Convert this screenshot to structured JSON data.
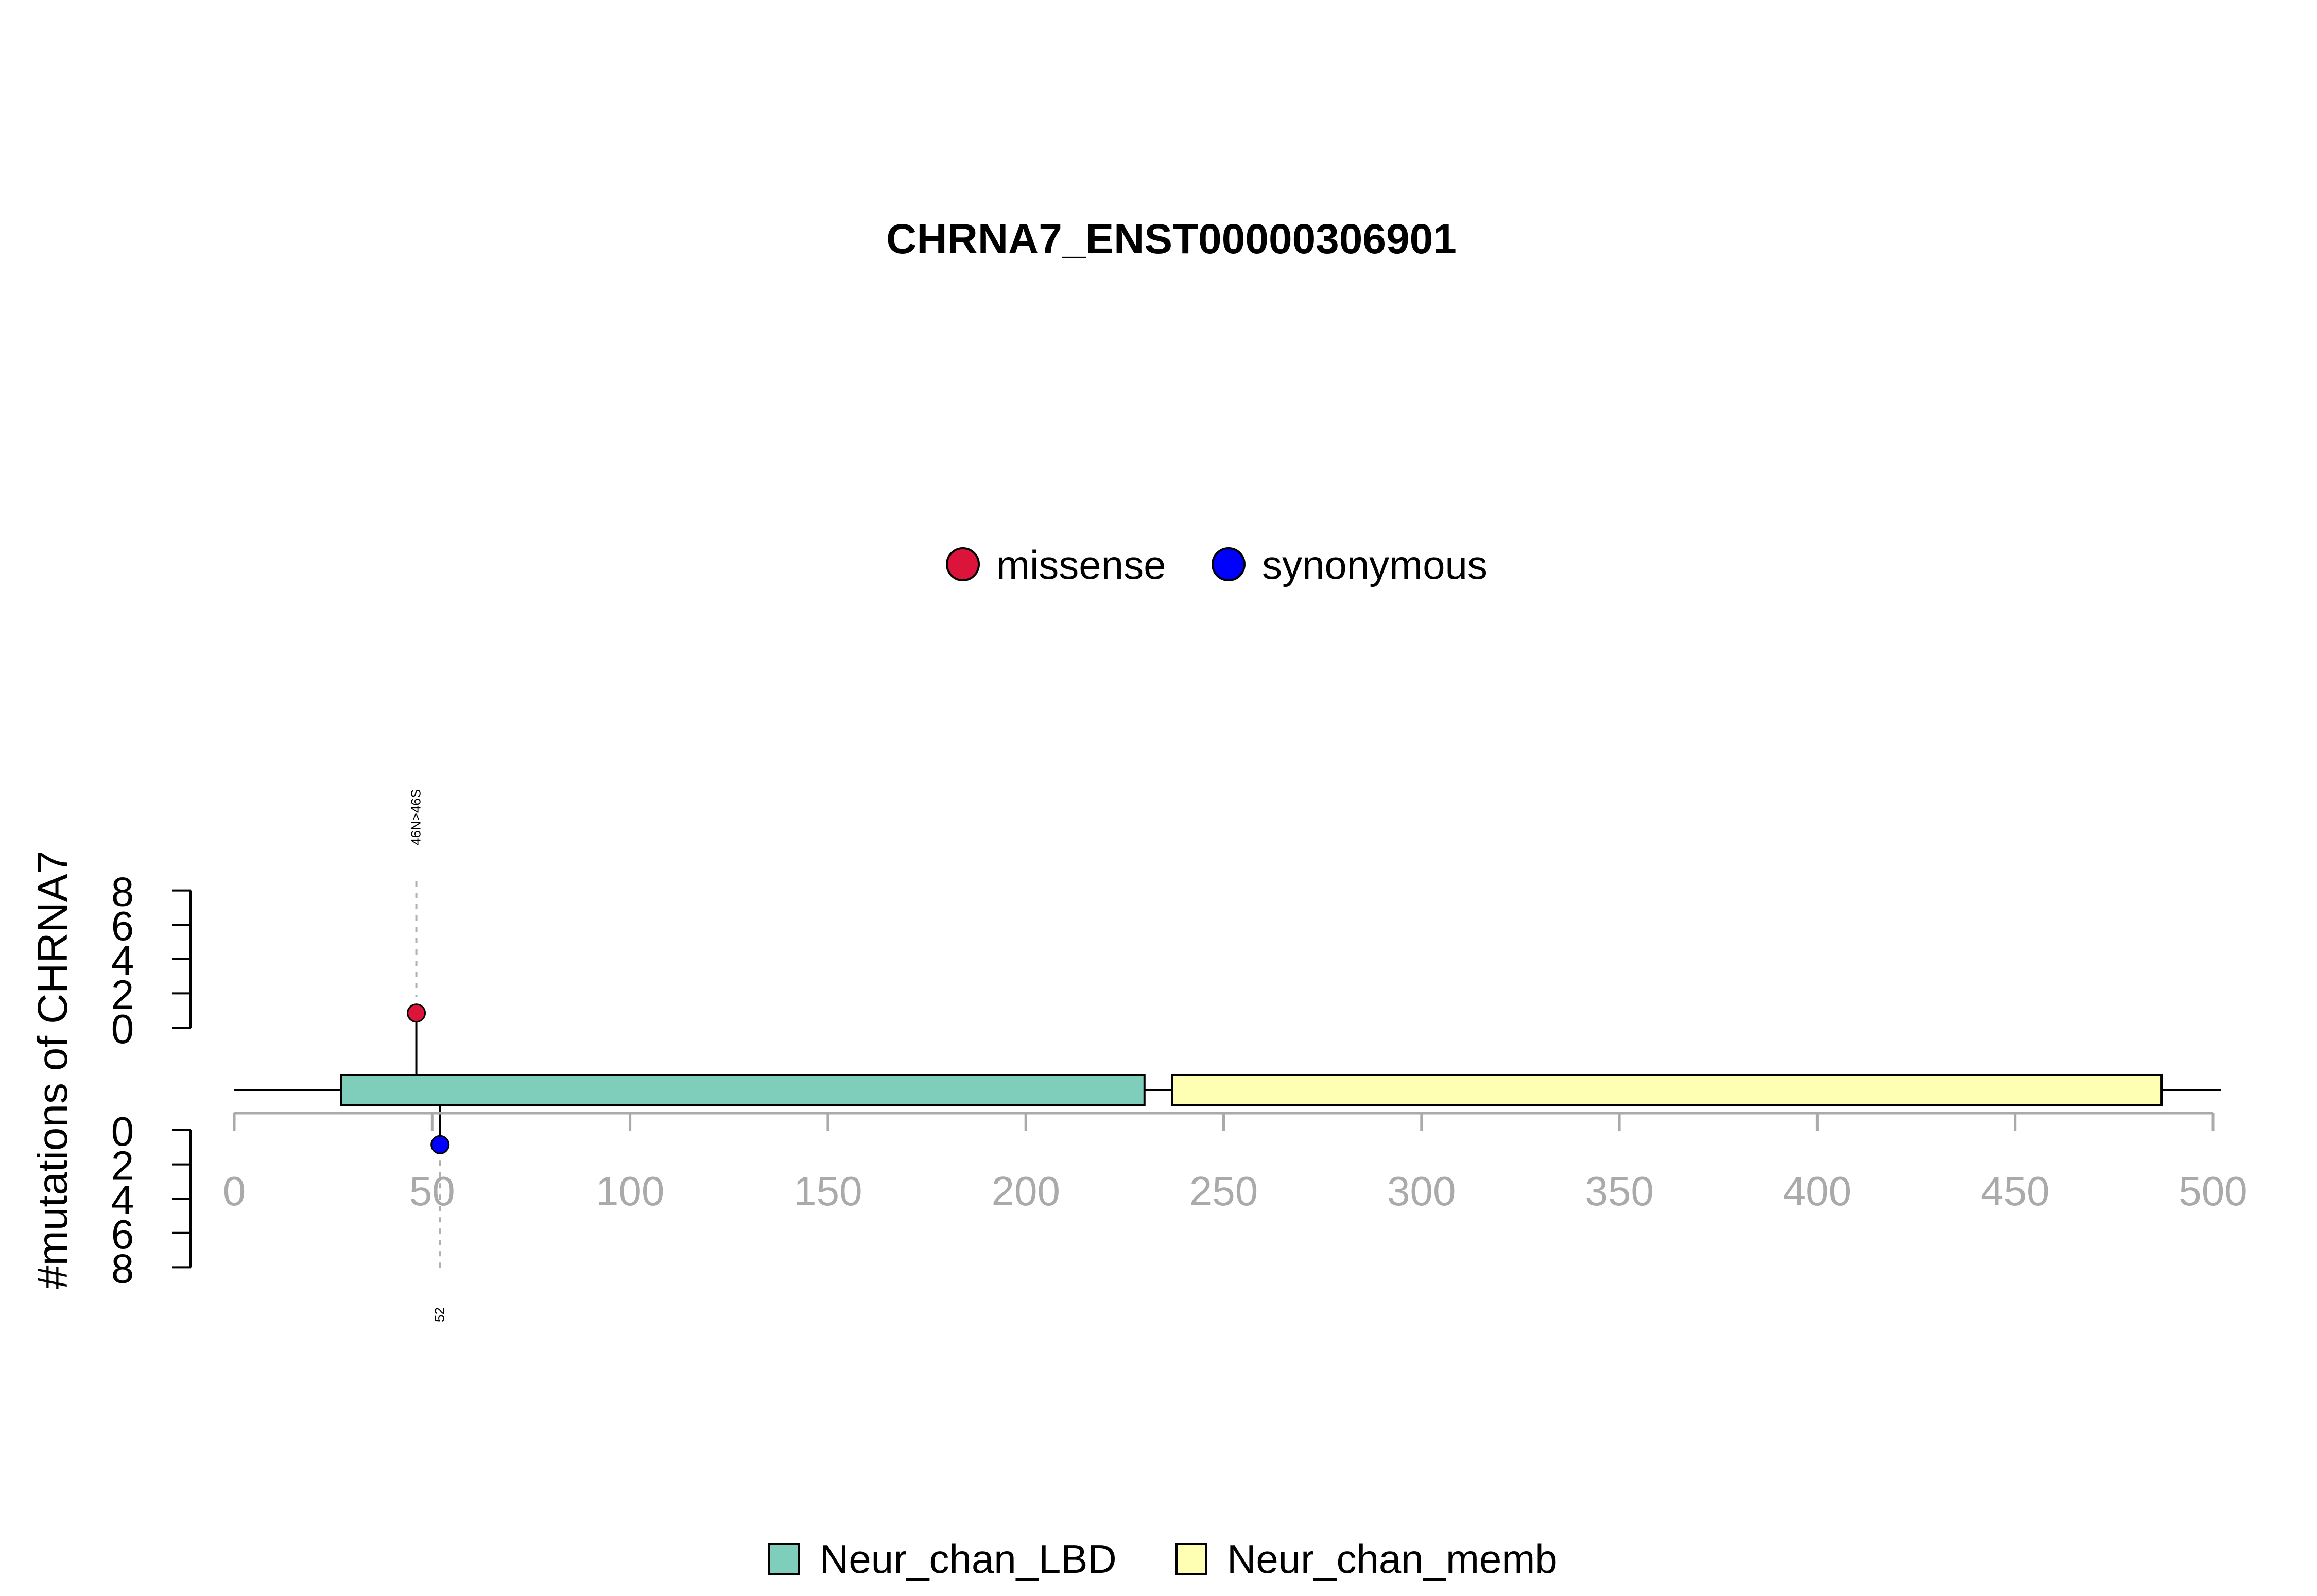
{
  "chart_data": {
    "type": "lollipop",
    "title": "CHRNA7_ENST00000306901",
    "ylabel": "#mutations of CHRNA7",
    "xlim": [
      0,
      500
    ],
    "x_ticks": [
      0,
      50,
      100,
      150,
      200,
      250,
      300,
      350,
      400,
      450,
      500
    ],
    "y_ticks": [
      0,
      2,
      4,
      6,
      8
    ],
    "ylim": [
      0,
      8
    ],
    "protein_length": 502,
    "legend_mutations": [
      {
        "label": "missense",
        "color": "#DC143C"
      },
      {
        "label": "synonymous",
        "color": "#0000FF"
      }
    ],
    "domains": [
      {
        "name": "Neur_chan_LBD",
        "start": 27,
        "end": 230,
        "color": "#7FCDBB"
      },
      {
        "name": "Neur_chan_memb",
        "start": 237,
        "end": 487,
        "color": "#FFFFB3"
      }
    ],
    "mutations_top": [
      {
        "position": 46,
        "count": 1,
        "type": "missense",
        "label": "46N>46S",
        "color": "#DC143C"
      }
    ],
    "mutations_bottom": [
      {
        "position": 52,
        "count": 1,
        "type": "synonymous",
        "label": "52",
        "color": "#0000FF"
      }
    ]
  }
}
